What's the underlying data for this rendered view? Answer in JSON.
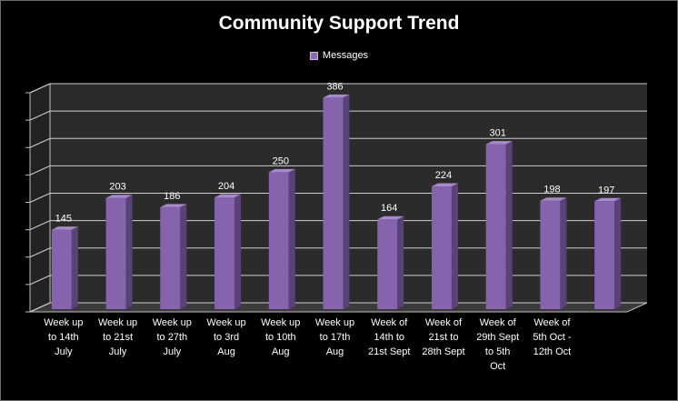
{
  "chart_data": {
    "type": "bar",
    "title": "Community Support Trend",
    "categories": [
      "Week up to 14th July",
      "Week up to 21st July",
      "Week up to 27th July",
      "Week up to 3rd Aug",
      "Week up to 10th Aug",
      "Week up to 17th Aug",
      "Week of 14th to 21st Sept",
      "Week of 21st to 28th Sept",
      "Week of 29th Sept to 5th Oct",
      "Week of 5th Oct - 12th Oct",
      ""
    ],
    "category_lines": [
      [
        "Week up",
        "to 14th",
        "July"
      ],
      [
        "Week up",
        "to 21st",
        "July"
      ],
      [
        "Week up",
        "to 27th",
        "July"
      ],
      [
        "Week up",
        "to 3rd",
        "Aug"
      ],
      [
        "Week up",
        "to 10th",
        "Aug"
      ],
      [
        "Week up",
        "to 17th",
        "Aug"
      ],
      [
        "Week of",
        "14th to",
        "21st Sept"
      ],
      [
        "Week of",
        "21st to",
        "28th Sept"
      ],
      [
        "Week of",
        "29th Sept",
        "to 5th",
        "Oct"
      ],
      [
        "Week of",
        "5th Oct -",
        "12th Oct"
      ],
      []
    ],
    "series": [
      {
        "name": "Messages",
        "values": [
          145,
          203,
          186,
          204,
          250,
          386,
          164,
          224,
          301,
          198,
          197
        ]
      }
    ],
    "ylim": [
      0,
      400
    ],
    "ytick_step": 50,
    "y_tick_labels_shown": false,
    "grid": true,
    "legend_position": "top",
    "data_labels": true,
    "three_d": true,
    "colors": {
      "background": "#000000",
      "plot_back_wall": "#2b2b2b",
      "plot_floor": "#3a3a3a",
      "bar_front": "#8563ad",
      "bar_side": "#5a4279",
      "bar_top": "#a888d0",
      "gridline": "#cfcfcf",
      "text": "#ffffff"
    }
  }
}
